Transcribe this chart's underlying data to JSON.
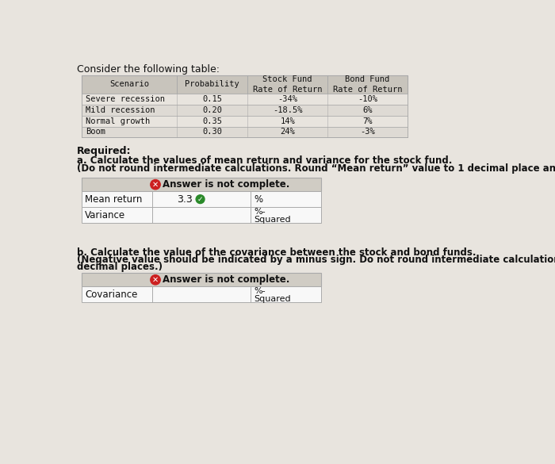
{
  "title": "Consider the following table:",
  "bg_color": "#e8e4de",
  "table_header_bg": "#c8c4bc",
  "table_row_bg": "#e8e4de",
  "table_border": "#aaaaaa",
  "answer_header_bg": "#d0ccc4",
  "answer_row_bg": "#f5f5f5",
  "answer_border": "#aaaaaa",
  "scenarios": [
    "Severe recession",
    "Mild recession",
    "Normal growth",
    "Boom"
  ],
  "probabilities": [
    "0.15",
    "0.20",
    "0.35",
    "0.30"
  ],
  "stock_returns": [
    "-34%",
    "-18.5%",
    "14%",
    "24%"
  ],
  "bond_returns": [
    "-10%",
    "6%",
    "7%",
    "-3%"
  ],
  "answer_not_complete": "Answer is not complete.",
  "mean_return_label": "Mean return",
  "mean_return_value": "3.3",
  "variance_label": "Variance",
  "covariance_label": "Covariance"
}
